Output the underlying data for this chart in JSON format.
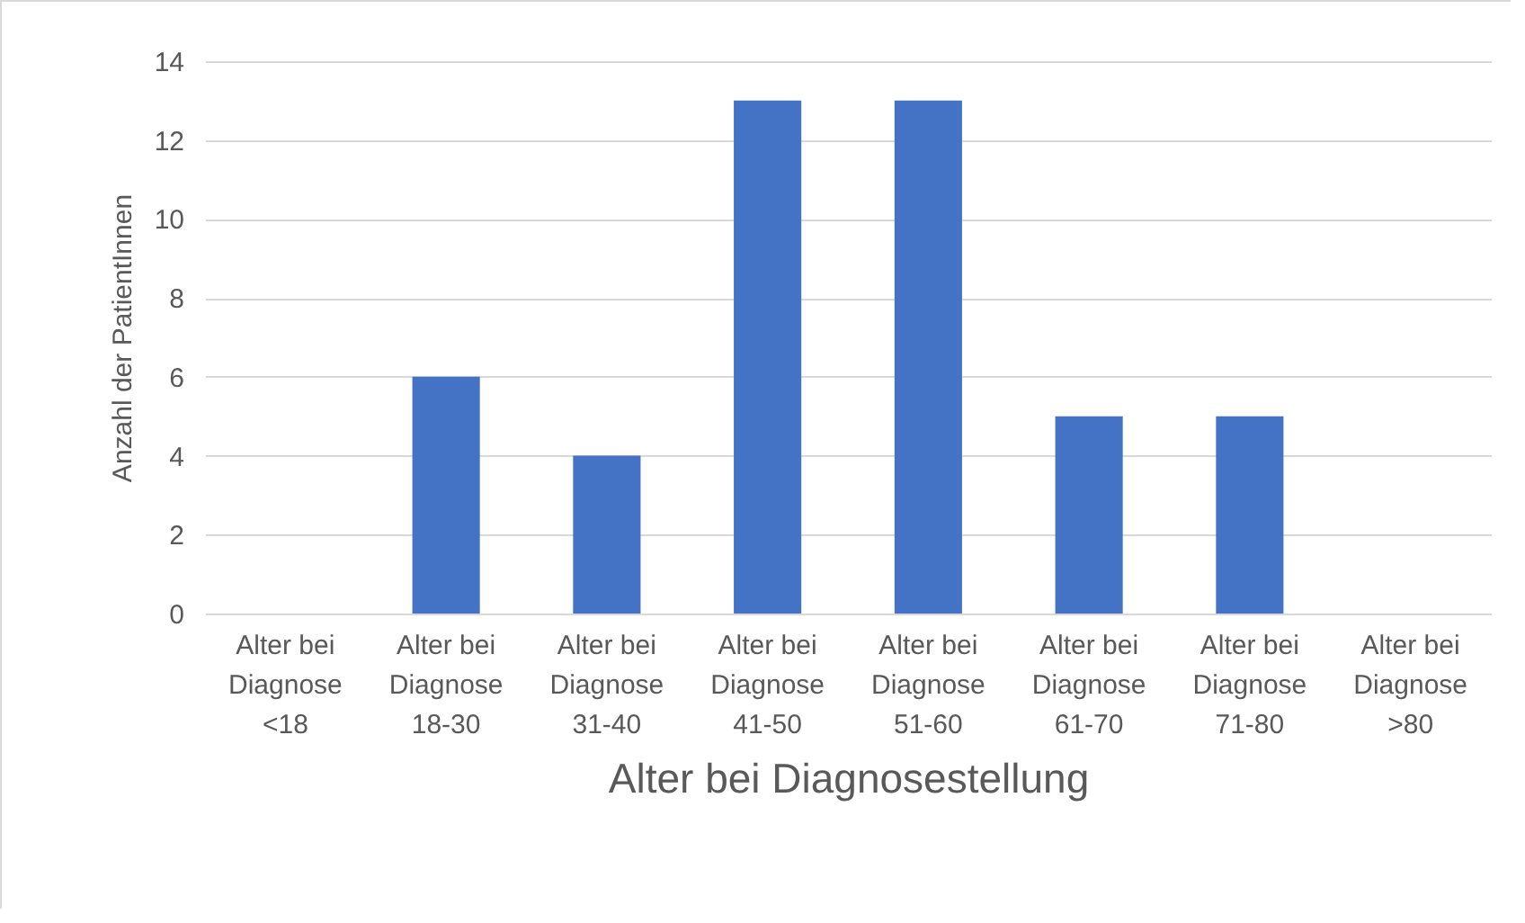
{
  "chart_data": {
    "type": "bar",
    "xlabel": "Alter bei Diagnosestellung",
    "ylabel": "Anzahl der PatientInnen",
    "categories": [
      "Alter bei Diagnose <18",
      "Alter bei Diagnose 18-30",
      "Alter bei Diagnose 31-40",
      "Alter bei Diagnose 41-50",
      "Alter bei Diagnose 51-60",
      "Alter bei Diagnose 61-70",
      "Alter bei Diagnose 71-80",
      "Alter bei Diagnose >80"
    ],
    "values": [
      0,
      6,
      4,
      13,
      13,
      5,
      5,
      0
    ],
    "color": "#4472c4",
    "ylim": [
      0,
      14
    ],
    "yticks": [
      0,
      2,
      4,
      6,
      8,
      10,
      12,
      14
    ],
    "grid": "y"
  }
}
